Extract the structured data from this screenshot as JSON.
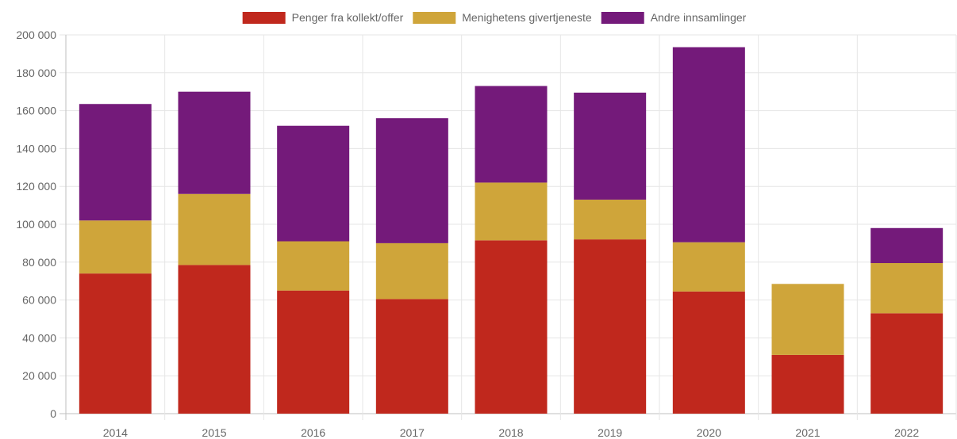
{
  "chart_data": {
    "type": "bar",
    "stacked": true,
    "categories": [
      "2014",
      "2015",
      "2016",
      "2017",
      "2018",
      "2019",
      "2020",
      "2021",
      "2022"
    ],
    "series": [
      {
        "name": "Penger fra kollekt/offer",
        "color": "#c0281d",
        "values": [
          74000,
          78500,
          65000,
          60500,
          91500,
          92000,
          64500,
          31000,
          53000
        ]
      },
      {
        "name": "Menighetens givertjeneste",
        "color": "#cfa53a",
        "values": [
          28000,
          37500,
          26000,
          29500,
          30500,
          21000,
          26000,
          37500,
          26500
        ]
      },
      {
        "name": "Andre innsamlinger",
        "color": "#741a7a",
        "values": [
          61500,
          54000,
          61000,
          66000,
          51000,
          56500,
          103000,
          0,
          18500
        ]
      }
    ],
    "y_ticks": [
      "0",
      "20 000",
      "40 000",
      "60 000",
      "80 000",
      "100 000",
      "120 000",
      "140 000",
      "160 000",
      "180 000",
      "200 000"
    ],
    "ylim": [
      0,
      200000
    ],
    "y_step": 20000,
    "grid": true,
    "legend_position": "top"
  }
}
